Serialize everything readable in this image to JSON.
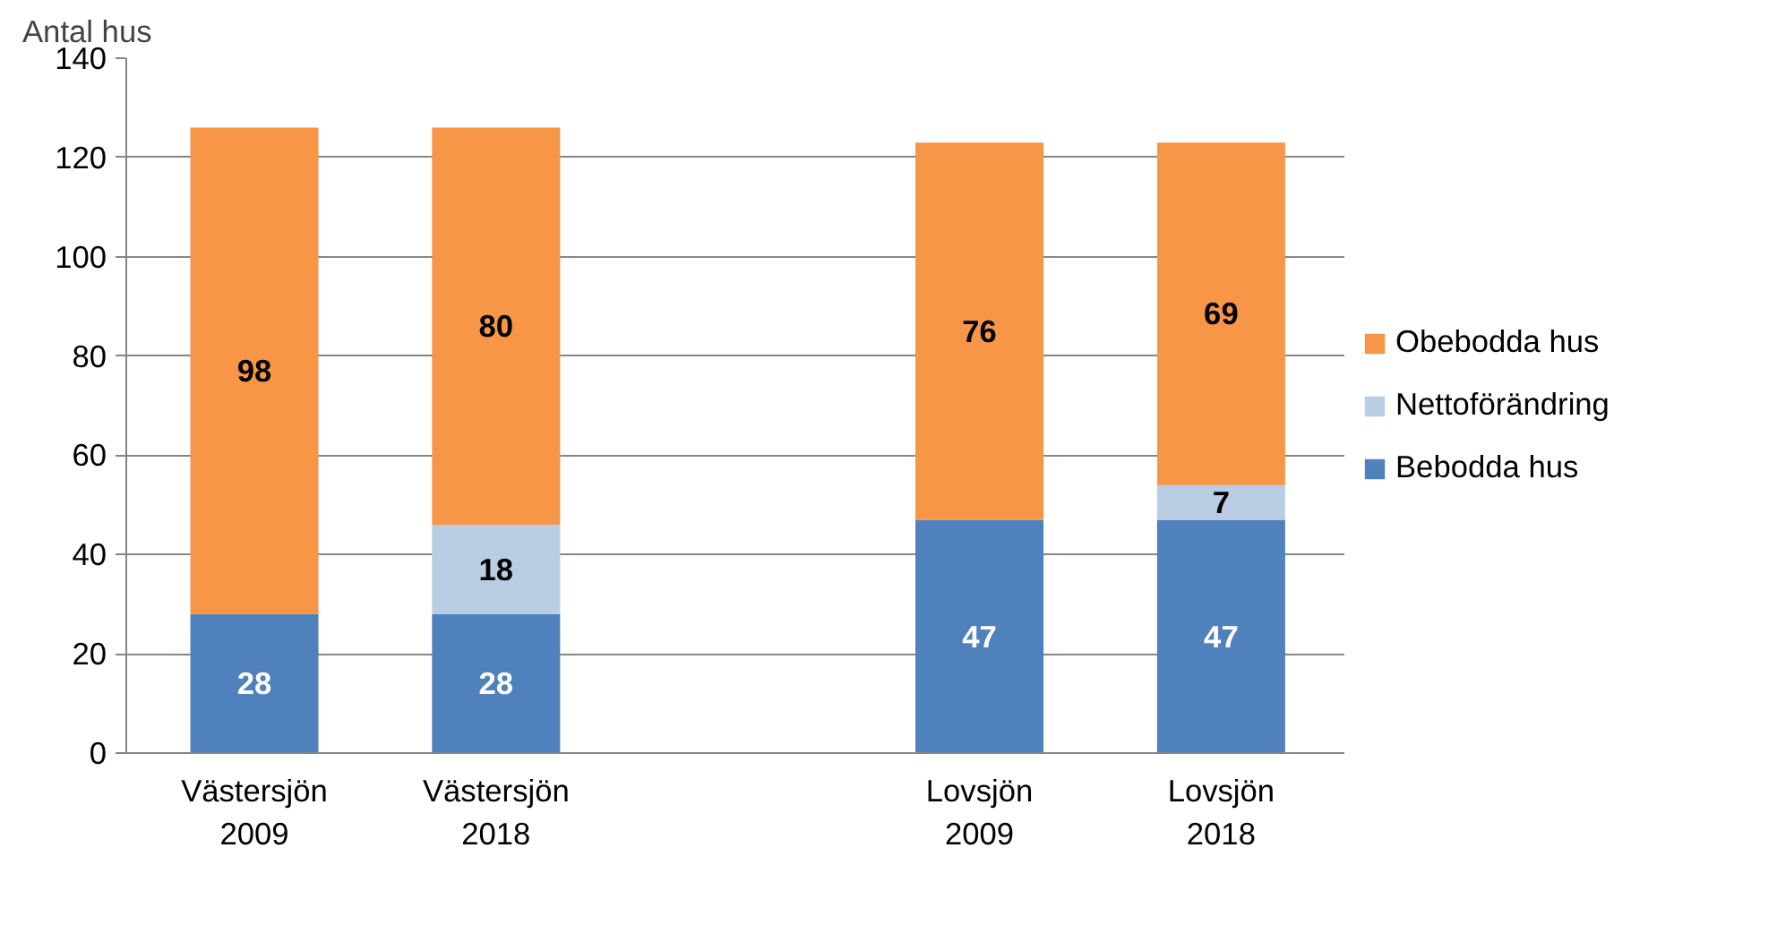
{
  "chart_data": {
    "type": "bar",
    "stacked": true,
    "ylabel": "Antal hus",
    "categories": [
      "Västersjön 2009",
      "Västersjön 2018",
      null,
      "Lovsjön 2009",
      "Lovsjön 2018"
    ],
    "series": [
      {
        "name": "Bebodda hus",
        "color": "#4f81bd",
        "values": [
          28,
          28,
          null,
          47,
          47
        ]
      },
      {
        "name": "Nettoförändring",
        "color": "#b9cde5",
        "values": [
          null,
          18,
          null,
          null,
          7
        ]
      },
      {
        "name": "Obebodda hus",
        "color": "#f79646",
        "values": [
          98,
          80,
          null,
          76,
          69
        ]
      }
    ],
    "ylim": [
      0,
      140
    ],
    "yticks": [
      0,
      20,
      40,
      60,
      80,
      100,
      120,
      140
    ],
    "grid": "y",
    "legend": "right",
    "data_labels": true
  }
}
